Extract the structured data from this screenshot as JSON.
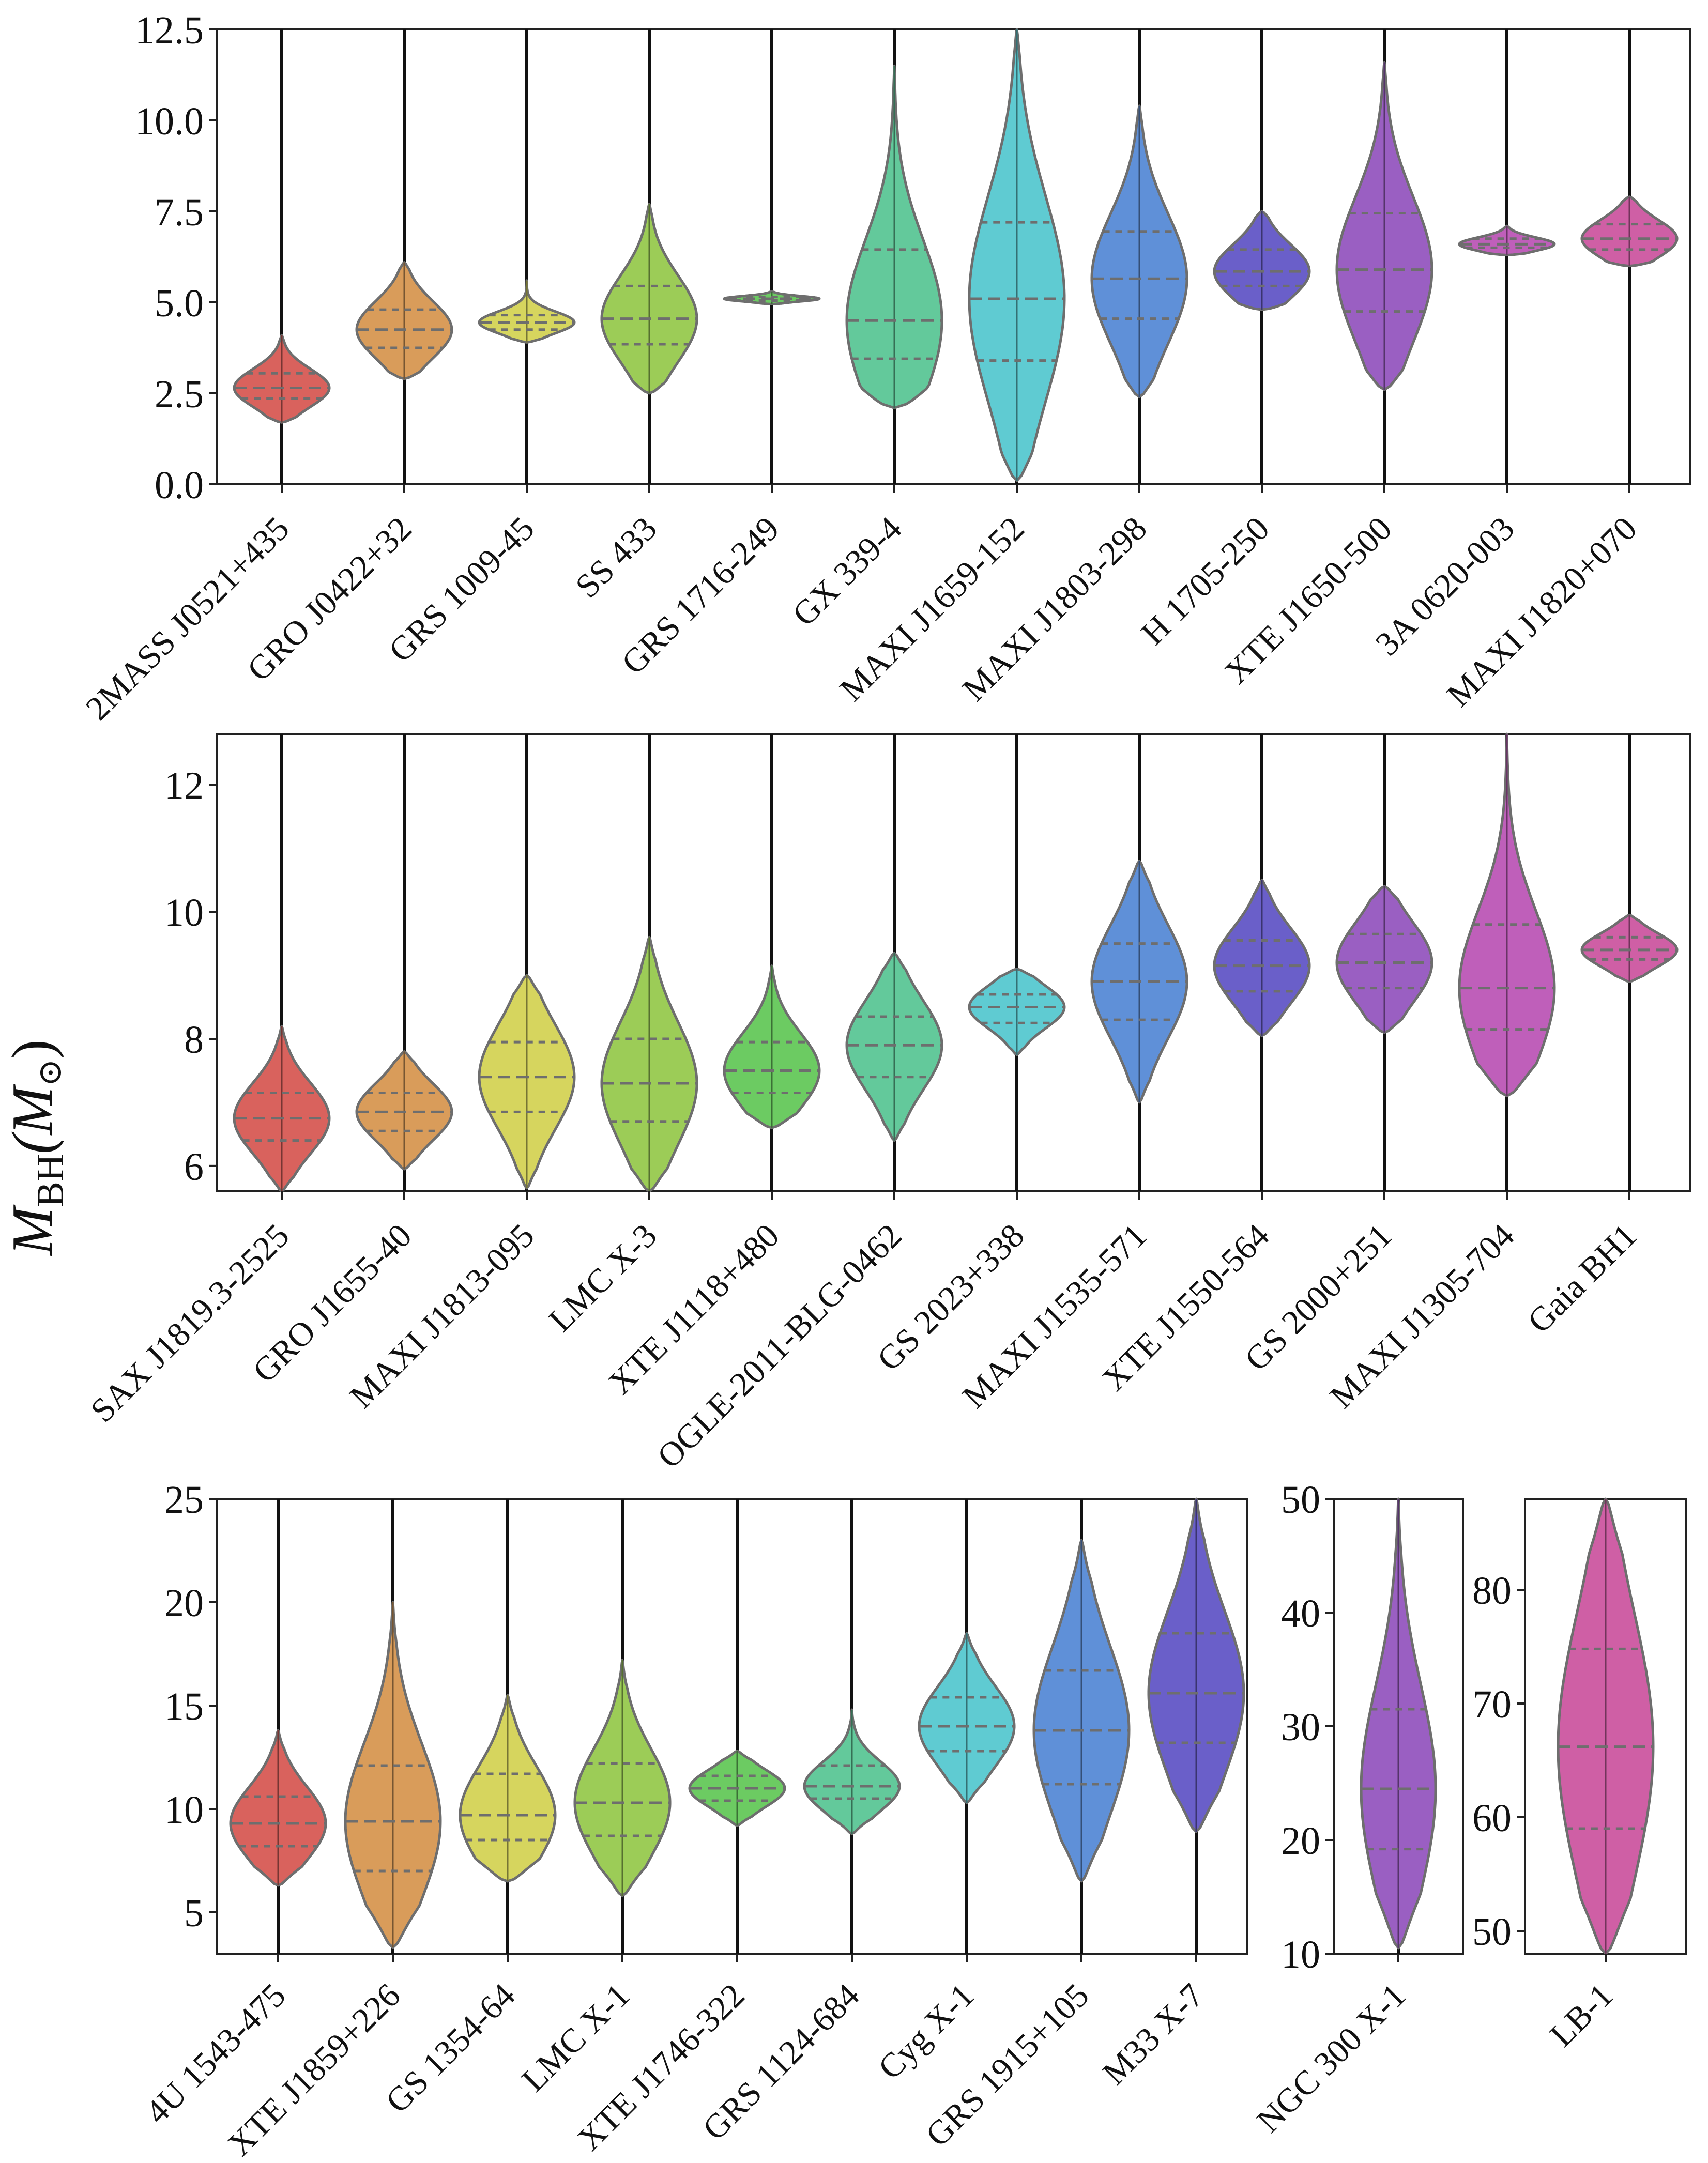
{
  "figure": {
    "ylabel": "M_BH(M_⊙)",
    "ylabel_main": "M",
    "ylabel_sub": "BH",
    "ylabel_paren": "(M",
    "ylabel_sun": "⊙",
    "ylabel_close": ")"
  },
  "chart_data": [
    {
      "type": "violin",
      "panel": "top",
      "ylim": [
        0,
        12.5
      ],
      "yticks": [
        "0.0",
        "2.5",
        "5.0",
        "7.5",
        "10.0",
        "12.5"
      ],
      "grid": false,
      "categories": [
        "2MASS J0521+435",
        "GRO J0422+32",
        "GRS 1009-45",
        "SS 433",
        "GRS 1716-249",
        "GX 339-4",
        "MAXI J1659-152",
        "MAXI J1803-298",
        "H 1705-250",
        "XTE J1650-500",
        "3A 0620-003",
        "MAXI J1820+070"
      ],
      "colors": [
        "#d9625d",
        "#d99c5a",
        "#d6d55e",
        "#9ccc57",
        "#6ccb62",
        "#63c99b",
        "#5fcbd2",
        "#5f90d8",
        "#6a5fc9",
        "#9a5fc2",
        "#bf5fba",
        "#cf5fa5"
      ],
      "min": [
        1.7,
        2.9,
        3.9,
        2.5,
        4.95,
        2.1,
        0.1,
        2.4,
        4.8,
        2.6,
        6.3,
        6.0
      ],
      "max": [
        4.1,
        6.1,
        5.6,
        7.7,
        5.3,
        11.5,
        12.5,
        10.4,
        7.5,
        11.6,
        7.1,
        7.9
      ],
      "q1": [
        2.35,
        3.75,
        4.25,
        3.85,
        5.05,
        3.45,
        3.4,
        4.55,
        5.45,
        4.75,
        6.5,
        6.45
      ],
      "median": [
        2.65,
        4.25,
        4.45,
        4.55,
        5.1,
        4.5,
        5.1,
        5.65,
        5.85,
        5.9,
        6.6,
        6.75
      ],
      "q3": [
        3.05,
        4.8,
        4.65,
        5.45,
        5.15,
        6.45,
        7.2,
        6.95,
        6.45,
        7.45,
        6.75,
        7.15
      ]
    },
    {
      "type": "violin",
      "panel": "middle",
      "ylim": [
        5.6,
        12.8
      ],
      "yticks": [
        "6",
        "8",
        "10",
        "12"
      ],
      "grid": false,
      "categories": [
        "SAX J1819.3-2525",
        "GRO J1655-40",
        "MAXI J1813-095",
        "LMC X-3",
        "XTE J1118+480",
        "OGLE-2011-BLG-0462",
        "GS 2023+338",
        "MAXI J1535-571",
        "XTE J1550-564",
        "GS 2000+251",
        "MAXI J1305-704",
        "Gaia BH1"
      ],
      "colors": [
        "#d9625d",
        "#d99c5a",
        "#d6d55e",
        "#9ccc57",
        "#6ccb62",
        "#63c99b",
        "#5fcbd2",
        "#5f90d8",
        "#6a5fc9",
        "#9a5fc2",
        "#bf5fba",
        "#cf5fa5"
      ],
      "min": [
        5.6,
        5.95,
        5.65,
        5.6,
        6.6,
        6.4,
        7.75,
        7.0,
        8.05,
        8.1,
        7.1,
        8.9
      ],
      "max": [
        8.2,
        7.8,
        9.0,
        9.6,
        9.15,
        9.35,
        9.1,
        10.8,
        10.5,
        10.4,
        12.8,
        9.95
      ],
      "q1": [
        6.4,
        6.55,
        6.85,
        6.7,
        7.15,
        7.4,
        8.25,
        8.3,
        8.75,
        8.8,
        8.15,
        9.25
      ],
      "median": [
        6.75,
        6.85,
        7.4,
        7.3,
        7.5,
        7.9,
        8.5,
        8.9,
        9.15,
        9.2,
        8.8,
        9.4
      ],
      "q3": [
        7.15,
        7.15,
        7.95,
        8.0,
        7.95,
        8.35,
        8.7,
        9.5,
        9.55,
        9.65,
        9.8,
        9.6
      ]
    },
    {
      "type": "violin",
      "panel": "bottom-left",
      "ylim": [
        3,
        25
      ],
      "yticks": [
        "5",
        "10",
        "15",
        "20",
        "25"
      ],
      "grid": false,
      "categories": [
        "4U 1543-475",
        "XTE J1859+226",
        "GS 1354-64",
        "LMC X-1",
        "XTE J1746-322",
        "GRS 1124-684",
        "Cyg X-1",
        "GRS 1915+105",
        "M33 X-7"
      ],
      "colors": [
        "#d9625d",
        "#d99c5a",
        "#d6d55e",
        "#9ccc57",
        "#6ccb62",
        "#63c99b",
        "#5fcbd2",
        "#5f90d8",
        "#6a5fc9"
      ],
      "min": [
        6.3,
        3.3,
        6.5,
        5.8,
        9.2,
        8.8,
        10.3,
        6.5,
        8.9
      ],
      "max": [
        13.8,
        20.0,
        15.5,
        17.2,
        12.8,
        14.8,
        18.5,
        23.0,
        25.0
      ],
      "q1": [
        8.2,
        7.0,
        8.5,
        8.7,
        10.4,
        10.5,
        12.8,
        11.2,
        13.2
      ],
      "median": [
        9.3,
        9.4,
        9.7,
        10.3,
        11.0,
        11.1,
        14.0,
        13.8,
        15.6
      ],
      "q3": [
        10.6,
        12.1,
        11.7,
        12.2,
        11.6,
        12.1,
        15.4,
        16.7,
        18.5
      ]
    },
    {
      "type": "violin",
      "panel": "bottom-middle",
      "ylim": [
        10,
        50
      ],
      "yticks": [
        "10",
        "20",
        "30",
        "40",
        "50"
      ],
      "grid": false,
      "categories": [
        "NGC 300 X-1"
      ],
      "colors": [
        "#9a5fc2"
      ],
      "min": [
        10.5
      ],
      "max": [
        50.0
      ],
      "q1": [
        19.2
      ],
      "median": [
        24.5
      ],
      "q3": [
        31.5
      ]
    },
    {
      "type": "violin",
      "panel": "bottom-right",
      "ylim": [
        48,
        88
      ],
      "yticks": [
        "50",
        "60",
        "70",
        "80"
      ],
      "grid": false,
      "categories": [
        "LB-1"
      ],
      "colors": [
        "#cf5fa5"
      ],
      "min": [
        48.0
      ],
      "max": [
        88.0
      ],
      "q1": [
        59.0
      ],
      "median": [
        66.2
      ],
      "q3": [
        74.8
      ]
    }
  ]
}
